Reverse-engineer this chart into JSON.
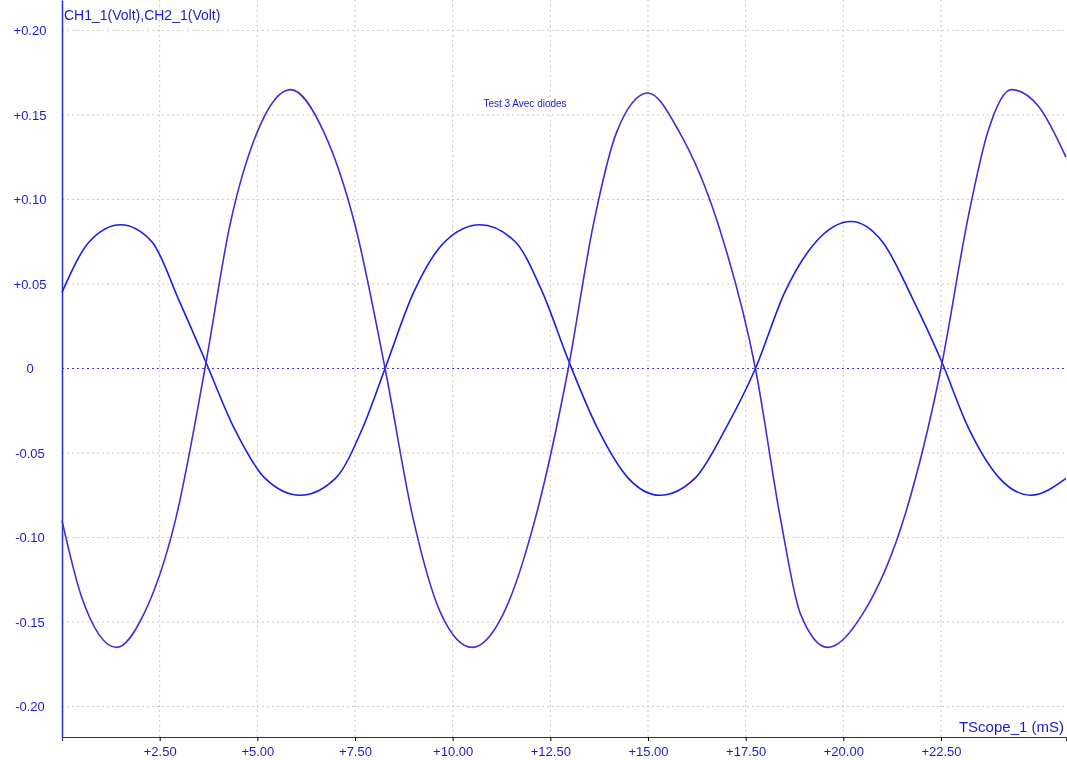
{
  "chart_data": {
    "type": "line",
    "ylabel": "CH1_1(Volt),CH2_1(Volt)",
    "xlabel": "TScope_1 (mS)",
    "annotations": [
      "Test 3 Avec diodes"
    ],
    "xlim": [
      0,
      25.7
    ],
    "ylim": [
      -0.218,
      0.218
    ],
    "xticks": [
      {
        "value": 2.5,
        "label": "+2.50"
      },
      {
        "value": 5,
        "label": "+5.00"
      },
      {
        "value": 7.5,
        "label": "+7.50"
      },
      {
        "value": 10,
        "label": "+10.00"
      },
      {
        "value": 12.5,
        "label": "+12.50"
      },
      {
        "value": 15,
        "label": "+15.00"
      },
      {
        "value": 17.5,
        "label": "+17.50"
      },
      {
        "value": 20,
        "label": "+20.00"
      },
      {
        "value": 22.5,
        "label": "+22.50"
      }
    ],
    "yticks": [
      {
        "value": -0.2,
        "label": "-0.20"
      },
      {
        "value": -0.15,
        "label": "-0.15"
      },
      {
        "value": -0.1,
        "label": "-0.10"
      },
      {
        "value": -0.05,
        "label": "-0.05"
      },
      0,
      {
        "value": 0.05,
        "label": "+0.05"
      },
      {
        "value": 0.1,
        "label": "+0.10"
      },
      {
        "value": 0.15,
        "label": "+0.15"
      },
      {
        "value": 0.2,
        "label": "+0.20"
      }
    ],
    "grid": true,
    "line_style": "solid",
    "marker": "none",
    "ref_lines": [
      {
        "axis": "y",
        "value": 0,
        "color": "#3a3ad8",
        "line_style": "dotted"
      }
    ],
    "series": [
      {
        "color": "#1c1ce6",
        "x": [
          0,
          0.7,
          1.5,
          2.3,
          3.0,
          3.66,
          4.4,
          5.2,
          6.1,
          7.0,
          7.7,
          8.27,
          9.0,
          9.8,
          10.7,
          11.6,
          12.3,
          12.96,
          13.7,
          14.5,
          15.3,
          16.2,
          17.0,
          17.75,
          18.5,
          19.3,
          20.2,
          21.0,
          21.8,
          22.5,
          23.2,
          24.0,
          24.8,
          25.7
        ],
        "values": [
          0.045,
          0.075,
          0.085,
          0.075,
          0.04,
          0.005,
          -0.035,
          -0.065,
          -0.075,
          -0.065,
          -0.035,
          0,
          0.045,
          0.075,
          0.085,
          0.075,
          0.045,
          0.005,
          -0.035,
          -0.065,
          -0.075,
          -0.065,
          -0.035,
          0,
          0.045,
          0.075,
          0.087,
          0.075,
          0.04,
          0.005,
          -0.035,
          -0.065,
          -0.075,
          -0.065
        ]
      },
      {
        "color": "#4a2ad6",
        "x": [
          0,
          0.5,
          1.4,
          2.1,
          2.9,
          3.66,
          4.3,
          5.0,
          5.85,
          6.7,
          7.5,
          8.27,
          9.0,
          9.7,
          10.5,
          11.3,
          12.1,
          12.96,
          13.6,
          14.2,
          15.0,
          15.8,
          16.8,
          17.75,
          18.4,
          18.9,
          19.6,
          20.5,
          21.6,
          22.5,
          23.2,
          23.7,
          24.3,
          25.0,
          25.7
        ],
        "values": [
          -0.09,
          -0.135,
          -0.165,
          -0.145,
          -0.09,
          0,
          0.085,
          0.14,
          0.165,
          0.14,
          0.085,
          0,
          -0.09,
          -0.145,
          -0.165,
          -0.145,
          -0.09,
          0,
          0.085,
          0.14,
          0.163,
          0.14,
          0.085,
          0,
          -0.09,
          -0.145,
          -0.165,
          -0.145,
          -0.085,
          0,
          0.09,
          0.14,
          0.165,
          0.155,
          0.125
        ]
      }
    ]
  }
}
